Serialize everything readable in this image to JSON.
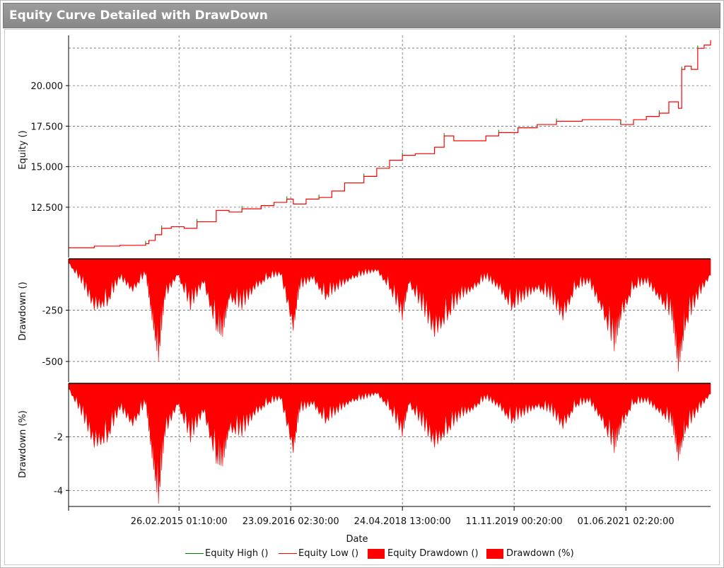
{
  "window": {
    "title": "Equity Curve Detailed with DrawDown"
  },
  "chart_data": [
    {
      "type": "line",
      "panel": "equity",
      "ylabel": "Equity ()",
      "ylim": [
        9400,
        23100
      ],
      "yticks": [
        12500,
        15000,
        17500,
        20000
      ],
      "ytick_labels": [
        "12.500",
        "15.000",
        "17.500",
        "20.000"
      ],
      "grid": true,
      "series": [
        {
          "name": "Equity High ()",
          "color": "#008000"
        },
        {
          "name": "Equity Low ()",
          "color": "#ff0000",
          "points": [
            [
              0,
              10000
            ],
            [
              0.04,
              10100
            ],
            [
              0.08,
              10150
            ],
            [
              0.12,
              10250
            ],
            [
              0.125,
              10450
            ],
            [
              0.135,
              10800
            ],
            [
              0.145,
              11200
            ],
            [
              0.16,
              11300
            ],
            [
              0.18,
              11200
            ],
            [
              0.2,
              11600
            ],
            [
              0.23,
              12300
            ],
            [
              0.25,
              12200
            ],
            [
              0.27,
              12400
            ],
            [
              0.3,
              12600
            ],
            [
              0.32,
              12800
            ],
            [
              0.34,
              13000
            ],
            [
              0.35,
              12700
            ],
            [
              0.37,
              13000
            ],
            [
              0.39,
              13100
            ],
            [
              0.41,
              13500
            ],
            [
              0.43,
              14000
            ],
            [
              0.46,
              14400
            ],
            [
              0.48,
              14900
            ],
            [
              0.5,
              15400
            ],
            [
              0.52,
              15700
            ],
            [
              0.54,
              15800
            ],
            [
              0.57,
              16200
            ],
            [
              0.585,
              16900
            ],
            [
              0.6,
              16600
            ],
            [
              0.65,
              16900
            ],
            [
              0.67,
              17100
            ],
            [
              0.7,
              17400
            ],
            [
              0.73,
              17600
            ],
            [
              0.76,
              17800
            ],
            [
              0.8,
              17900
            ],
            [
              0.84,
              17900
            ],
            [
              0.86,
              17600
            ],
            [
              0.88,
              17900
            ],
            [
              0.9,
              18100
            ],
            [
              0.92,
              18300
            ],
            [
              0.935,
              19000
            ],
            [
              0.95,
              18600
            ],
            [
              0.955,
              21000
            ],
            [
              0.96,
              21200
            ],
            [
              0.97,
              21000
            ],
            [
              0.98,
              22300
            ],
            [
              0.99,
              22500
            ],
            [
              1.0,
              22800
            ]
          ]
        }
      ]
    },
    {
      "type": "area",
      "panel": "drawdown-abs",
      "ylabel": "Drawdown ()",
      "ylim": [
        -600,
        0
      ],
      "yticks": [
        -250,
        -500
      ],
      "ytick_labels": [
        "-250",
        "-500"
      ],
      "grid": true,
      "series": [
        {
          "name": "Equity Drawdown ()",
          "color": "#ff0000",
          "points": [
            [
              0,
              -20
            ],
            [
              0.02,
              -120
            ],
            [
              0.04,
              -250
            ],
            [
              0.06,
              -230
            ],
            [
              0.08,
              -100
            ],
            [
              0.1,
              -160
            ],
            [
              0.12,
              -80
            ],
            [
              0.13,
              -300
            ],
            [
              0.14,
              -500
            ],
            [
              0.15,
              -200
            ],
            [
              0.17,
              -80
            ],
            [
              0.19,
              -250
            ],
            [
              0.21,
              -120
            ],
            [
              0.23,
              -350
            ],
            [
              0.24,
              -380
            ],
            [
              0.25,
              -200
            ],
            [
              0.27,
              -250
            ],
            [
              0.29,
              -150
            ],
            [
              0.31,
              -100
            ],
            [
              0.33,
              -80
            ],
            [
              0.35,
              -350
            ],
            [
              0.36,
              -150
            ],
            [
              0.38,
              -100
            ],
            [
              0.4,
              -200
            ],
            [
              0.42,
              -150
            ],
            [
              0.44,
              -100
            ],
            [
              0.46,
              -80
            ],
            [
              0.48,
              -60
            ],
            [
              0.5,
              -150
            ],
            [
              0.52,
              -300
            ],
            [
              0.53,
              -120
            ],
            [
              0.55,
              -250
            ],
            [
              0.57,
              -380
            ],
            [
              0.59,
              -300
            ],
            [
              0.61,
              -200
            ],
            [
              0.63,
              -150
            ],
            [
              0.65,
              -100
            ],
            [
              0.67,
              -150
            ],
            [
              0.69,
              -250
            ],
            [
              0.71,
              -200
            ],
            [
              0.73,
              -150
            ],
            [
              0.75,
              -200
            ],
            [
              0.77,
              -300
            ],
            [
              0.79,
              -150
            ],
            [
              0.81,
              -120
            ],
            [
              0.83,
              -250
            ],
            [
              0.85,
              -450
            ],
            [
              0.86,
              -300
            ],
            [
              0.88,
              -150
            ],
            [
              0.9,
              -120
            ],
            [
              0.92,
              -200
            ],
            [
              0.94,
              -300
            ],
            [
              0.95,
              -550
            ],
            [
              0.96,
              -350
            ],
            [
              0.98,
              -200
            ],
            [
              1.0,
              -80
            ]
          ]
        }
      ]
    },
    {
      "type": "area",
      "panel": "drawdown-pct",
      "ylabel": "Drawdown (%)",
      "ylim": [
        -4.6,
        0
      ],
      "yticks": [
        -2,
        -4
      ],
      "ytick_labels": [
        "-2",
        "-4"
      ],
      "grid": true,
      "series": [
        {
          "name": "Drawdown (%)",
          "color": "#ff0000",
          "points": [
            [
              0,
              -0.2
            ],
            [
              0.02,
              -1.2
            ],
            [
              0.04,
              -2.4
            ],
            [
              0.06,
              -2.2
            ],
            [
              0.08,
              -1.0
            ],
            [
              0.1,
              -1.6
            ],
            [
              0.12,
              -0.8
            ],
            [
              0.13,
              -2.8
            ],
            [
              0.14,
              -4.5
            ],
            [
              0.15,
              -2.0
            ],
            [
              0.17,
              -0.8
            ],
            [
              0.19,
              -2.2
            ],
            [
              0.21,
              -1.1
            ],
            [
              0.23,
              -3.0
            ],
            [
              0.24,
              -3.1
            ],
            [
              0.25,
              -1.8
            ],
            [
              0.27,
              -2.0
            ],
            [
              0.29,
              -1.2
            ],
            [
              0.31,
              -0.8
            ],
            [
              0.33,
              -0.6
            ],
            [
              0.35,
              -2.6
            ],
            [
              0.36,
              -1.1
            ],
            [
              0.38,
              -0.8
            ],
            [
              0.4,
              -1.5
            ],
            [
              0.42,
              -1.1
            ],
            [
              0.44,
              -0.7
            ],
            [
              0.46,
              -0.6
            ],
            [
              0.48,
              -0.4
            ],
            [
              0.5,
              -1.0
            ],
            [
              0.52,
              -2.0
            ],
            [
              0.53,
              -0.8
            ],
            [
              0.55,
              -1.6
            ],
            [
              0.57,
              -2.4
            ],
            [
              0.59,
              -1.9
            ],
            [
              0.61,
              -1.3
            ],
            [
              0.63,
              -1.0
            ],
            [
              0.65,
              -0.6
            ],
            [
              0.67,
              -0.9
            ],
            [
              0.69,
              -1.5
            ],
            [
              0.71,
              -1.2
            ],
            [
              0.73,
              -0.9
            ],
            [
              0.75,
              -1.1
            ],
            [
              0.77,
              -1.7
            ],
            [
              0.79,
              -0.9
            ],
            [
              0.81,
              -0.7
            ],
            [
              0.83,
              -1.4
            ],
            [
              0.85,
              -2.6
            ],
            [
              0.86,
              -1.7
            ],
            [
              0.88,
              -0.8
            ],
            [
              0.9,
              -0.7
            ],
            [
              0.92,
              -1.1
            ],
            [
              0.94,
              -1.6
            ],
            [
              0.95,
              -2.9
            ],
            [
              0.96,
              -1.9
            ],
            [
              0.98,
              -1.1
            ],
            [
              1.0,
              -0.4
            ]
          ]
        }
      ]
    }
  ],
  "xaxis": {
    "xlabel": "Date",
    "tick_labels": [
      "26.02.2015 01:10:00",
      "23.09.2016 02:30:00",
      "24.04.2018 13:00:00",
      "11.11.2019 00:20:00",
      "01.06.2021 02:20:00"
    ],
    "tick_positions": [
      0.172,
      0.346,
      0.52,
      0.694,
      0.868
    ]
  },
  "legend": {
    "placement": "bottom-center",
    "items": [
      {
        "label": "Equity High ()",
        "kind": "line",
        "color": "#008000"
      },
      {
        "label": "Equity Low ()",
        "kind": "line",
        "color": "#ff0000"
      },
      {
        "label": "Equity Drawdown ()",
        "kind": "box",
        "color": "#ff0000"
      },
      {
        "label": "Drawdown (%)",
        "kind": "box",
        "color": "#ff0000"
      }
    ]
  }
}
